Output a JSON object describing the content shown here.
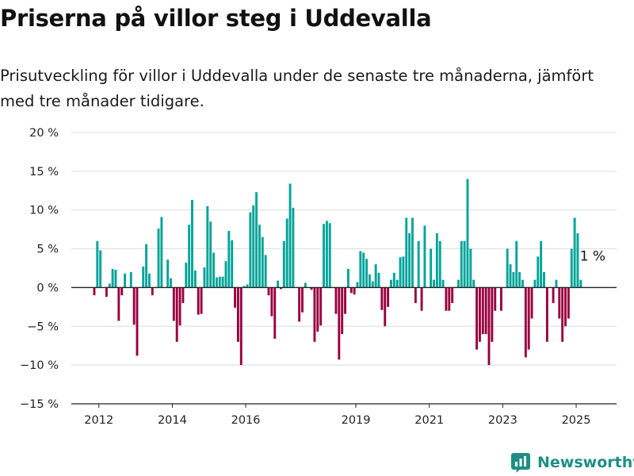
{
  "title": "Priserna på villor steg i Uddevalla",
  "subtitle": "Prisutveckling för villor i Uddevalla under de senaste tre månaderna, jämfört med tre månader tidigare.",
  "brand": {
    "name": "Newsworthy",
    "icon": "newsworthy-logo-icon"
  },
  "colors": {
    "positive": "#00a49a",
    "negative": "#98003f",
    "grid": "#dcdcdc",
    "axis": "#222222"
  },
  "chart_data": {
    "type": "bar",
    "ylim": [
      -15,
      20
    ],
    "yticks": [
      -15,
      -10,
      -5,
      0,
      5,
      10,
      15,
      20
    ],
    "ytick_labels": [
      "−15 %",
      "−10 %",
      "−5 %",
      "0 %",
      "5 %",
      "10 %",
      "15 %",
      "20 %"
    ],
    "xlim": [
      2011.25,
      2026.1
    ],
    "xticks": [
      2012,
      2014,
      2016,
      2019,
      2021,
      2023,
      2025
    ],
    "xtick_labels": [
      "2012",
      "2014",
      "2016",
      "2019",
      "2021",
      "2023",
      "2025"
    ],
    "grid": true,
    "legend": "none",
    "start_year": 2011,
    "start_month": 11,
    "values": [
      -1,
      6,
      4.8,
      0,
      -1.2,
      0.5,
      2.4,
      2.3,
      -4.3,
      -1,
      1.8,
      0,
      2,
      -4.8,
      -8.8,
      0,
      2.7,
      5.6,
      1.8,
      -1,
      0,
      7.6,
      9.1,
      0,
      3.6,
      1.2,
      -4.3,
      -7,
      -4.9,
      -2,
      3.2,
      8.1,
      11.3,
      2.2,
      -3.5,
      -3.4,
      2.6,
      10.5,
      8.5,
      4.5,
      1.3,
      1.4,
      1.4,
      3.4,
      7.3,
      6.1,
      -2.6,
      -7,
      -10,
      0.2,
      0.4,
      9.7,
      10.6,
      12.3,
      8.1,
      6.5,
      4.2,
      -1,
      -3.7,
      -6.6,
      0.9,
      -0.2,
      6,
      8.9,
      13.4,
      10.3,
      0,
      -4.4,
      -3.2,
      0.6,
      0,
      -0.3,
      -7,
      -5.7,
      -4.9,
      8.2,
      8.6,
      8.3,
      0,
      -3.4,
      -9.3,
      -6,
      -3.4,
      2.4,
      -0.7,
      -0.9,
      0.7,
      4.7,
      4.5,
      3.7,
      1.7,
      0.8,
      3,
      1.9,
      -2.9,
      -5,
      -2.5,
      1,
      1.9,
      1,
      3.9,
      4,
      9,
      7,
      9,
      -2,
      6,
      -3,
      8,
      0,
      5,
      1,
      7,
      6,
      1,
      -3,
      -3,
      -2,
      0,
      1,
      6,
      6,
      14,
      5,
      1,
      -8,
      -7,
      -6,
      -6,
      -10,
      -7,
      -3,
      0,
      -3,
      0,
      5,
      3,
      2,
      6,
      2,
      1,
      -9,
      -8,
      -4,
      1,
      4,
      6,
      2,
      -7,
      0,
      -2,
      1,
      -4,
      -7,
      -5,
      -4,
      5,
      9,
      7,
      1
    ],
    "annotations": [
      {
        "text": "1 %",
        "x": 2025.45,
        "y": 1
      }
    ]
  }
}
